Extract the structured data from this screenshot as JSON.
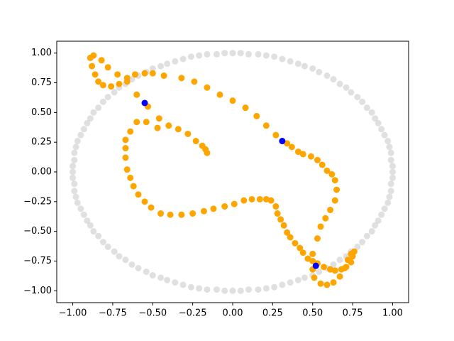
{
  "chart_data": {
    "type": "scatter",
    "xlim": [
      -1.1,
      1.1
    ],
    "ylim": [
      -1.1,
      1.1
    ],
    "xticks": [
      {
        "value": -1,
        "label": "−1.00"
      },
      {
        "value": -0.75,
        "label": "−0.75"
      },
      {
        "value": -0.5,
        "label": "−0.50"
      },
      {
        "value": -0.25,
        "label": "−0.25"
      },
      {
        "value": 0,
        "label": "0.00"
      },
      {
        "value": 0.25,
        "label": "0.25"
      },
      {
        "value": 0.5,
        "label": "0.50"
      },
      {
        "value": 0.75,
        "label": "0.75"
      },
      {
        "value": 1,
        "label": "1.00"
      }
    ],
    "yticks": [
      {
        "value": -1,
        "label": "−1.00"
      },
      {
        "value": -0.75,
        "label": "−0.75"
      },
      {
        "value": -0.5,
        "label": "−0.50"
      },
      {
        "value": -0.25,
        "label": "−0.25"
      },
      {
        "value": 0,
        "label": "0.00"
      },
      {
        "value": 0.25,
        "label": "0.25"
      },
      {
        "value": 0.5,
        "label": "0.50"
      },
      {
        "value": 0.75,
        "label": "0.75"
      },
      {
        "value": 1,
        "label": "1.00"
      }
    ],
    "series": [
      {
        "color": "#d3d3d3",
        "opacity": 0.7,
        "x": [
          1,
          1,
          0.99,
          0.99,
          0.98,
          0.97,
          0.95,
          0.93,
          0.91,
          0.89,
          0.87,
          0.84,
          0.81,
          0.78,
          0.74,
          0.71,
          0.67,
          0.63,
          0.59,
          0.54,
          0.5,
          0.45,
          0.41,
          0.36,
          0.31,
          0.26,
          0.21,
          0.16,
          0.1,
          0.05,
          0,
          -0.05,
          -0.1,
          -0.16,
          -0.21,
          -0.26,
          -0.31,
          -0.36,
          -0.41,
          -0.45,
          -0.5,
          -0.54,
          -0.59,
          -0.63,
          -0.67,
          -0.71,
          -0.74,
          -0.78,
          -0.81,
          -0.84,
          -0.87,
          -0.89,
          -0.91,
          -0.93,
          -0.95,
          -0.97,
          -0.98,
          -0.99,
          -0.99,
          -1,
          -1,
          -1,
          -0.99,
          -0.99,
          -0.98,
          -0.97,
          -0.95,
          -0.93,
          -0.91,
          -0.89,
          -0.87,
          -0.84,
          -0.81,
          -0.78,
          -0.74,
          -0.71,
          -0.67,
          -0.63,
          -0.59,
          -0.54,
          -0.5,
          -0.45,
          -0.41,
          -0.36,
          -0.31,
          -0.26,
          -0.21,
          -0.16,
          -0.1,
          -0.05,
          0,
          0.05,
          0.1,
          0.16,
          0.21,
          0.26,
          0.31,
          0.36,
          0.41,
          0.45,
          0.5,
          0.54,
          0.59,
          0.63,
          0.67,
          0.71,
          0.74,
          0.78,
          0.81,
          0.84,
          0.87,
          0.89,
          0.91,
          0.93,
          0.95,
          0.97,
          0.98,
          0.99,
          0.99,
          1
        ],
        "y": [
          0,
          0.05,
          0.1,
          0.16,
          0.21,
          0.26,
          0.31,
          0.36,
          0.41,
          0.45,
          0.5,
          0.54,
          0.59,
          0.63,
          0.67,
          0.71,
          0.74,
          0.78,
          0.81,
          0.84,
          0.87,
          0.89,
          0.91,
          0.93,
          0.95,
          0.97,
          0.98,
          0.99,
          0.99,
          1,
          1,
          1,
          0.99,
          0.99,
          0.98,
          0.97,
          0.95,
          0.93,
          0.91,
          0.89,
          0.87,
          0.84,
          0.81,
          0.78,
          0.74,
          0.71,
          0.67,
          0.63,
          0.59,
          0.54,
          0.5,
          0.45,
          0.41,
          0.36,
          0.31,
          0.26,
          0.21,
          0.16,
          0.1,
          0.05,
          0,
          -0.05,
          -0.1,
          -0.16,
          -0.21,
          -0.26,
          -0.31,
          -0.36,
          -0.41,
          -0.45,
          -0.5,
          -0.54,
          -0.59,
          -0.63,
          -0.67,
          -0.71,
          -0.74,
          -0.78,
          -0.81,
          -0.84,
          -0.87,
          -0.89,
          -0.91,
          -0.93,
          -0.95,
          -0.97,
          -0.98,
          -0.99,
          -0.99,
          -1,
          -1,
          -1,
          -0.99,
          -0.99,
          -0.98,
          -0.97,
          -0.95,
          -0.93,
          -0.91,
          -0.89,
          -0.87,
          -0.84,
          -0.81,
          -0.78,
          -0.74,
          -0.71,
          -0.67,
          -0.63,
          -0.59,
          -0.54,
          -0.5,
          -0.45,
          -0.41,
          -0.36,
          -0.31,
          -0.26,
          -0.21,
          -0.16,
          -0.1,
          -0.05
        ]
      },
      {
        "color": "#ffa500",
        "opacity": 1,
        "x": [
          -0.16,
          -0.17,
          -0.19,
          -0.23,
          -0.28,
          -0.34,
          -0.4,
          -0.46,
          -0.47,
          -0.54,
          -0.6,
          -0.64,
          -0.67,
          -0.67,
          -0.67,
          -0.66,
          -0.64,
          -0.62,
          -0.59,
          -0.55,
          -0.51,
          -0.45,
          -0.39,
          -0.32,
          -0.25,
          -0.18,
          -0.12,
          -0.05,
          0.01,
          0.07,
          0.12,
          0.17,
          0.21,
          0.24,
          0.27,
          0.28,
          0.3,
          0.32,
          0.34,
          0.36,
          0.39,
          0.42,
          0.44,
          0.47,
          0.5,
          0.53,
          0.57,
          0.61,
          0.64,
          0.68,
          0.71,
          0.74,
          0.75,
          0.76,
          0.74,
          0.72,
          0.7,
          0.67,
          0.63,
          0.59,
          0.55,
          0.51,
          0.5,
          0.5,
          0.53,
          0.55,
          0.58,
          0.61,
          0.64,
          0.65,
          0.64,
          0.62,
          0.59,
          0.56,
          0.53,
          0.49,
          0.44,
          0.41,
          0.37,
          0.34,
          0.31,
          0.27,
          0.21,
          0.15,
          0.08,
          0,
          -0.08,
          -0.16,
          -0.24,
          -0.32,
          -0.43,
          -0.5,
          -0.55,
          -0.61,
          -0.66,
          -0.71,
          -0.76,
          -0.81,
          -0.84,
          -0.86,
          -0.88,
          -0.89,
          -0.87,
          -0.82,
          -0.78,
          -0.72,
          -0.66,
          -0.6,
          -0.53
        ],
        "y": [
          0.16,
          0.19,
          0.22,
          0.26,
          0.32,
          0.36,
          0.39,
          0.45,
          0.37,
          0.42,
          0.42,
          0.34,
          0.27,
          0.2,
          0.12,
          0.02,
          -0.05,
          -0.12,
          -0.19,
          -0.25,
          -0.3,
          -0.35,
          -0.36,
          -0.36,
          -0.35,
          -0.33,
          -0.31,
          -0.29,
          -0.27,
          -0.24,
          -0.23,
          -0.23,
          -0.23,
          -0.24,
          -0.29,
          -0.35,
          -0.4,
          -0.45,
          -0.51,
          -0.55,
          -0.6,
          -0.64,
          -0.68,
          -0.73,
          -0.75,
          -0.77,
          -0.8,
          -0.82,
          -0.83,
          -0.82,
          -0.8,
          -0.76,
          -0.71,
          -0.67,
          -0.69,
          -0.74,
          -0.81,
          -0.88,
          -0.93,
          -0.95,
          -0.94,
          -0.89,
          -0.82,
          -0.69,
          -0.56,
          -0.46,
          -0.39,
          -0.32,
          -0.24,
          -0.15,
          -0.07,
          -0.02,
          0.01,
          0.06,
          0.1,
          0.13,
          0.15,
          0.17,
          0.21,
          0.24,
          0.26,
          0.31,
          0.39,
          0.47,
          0.54,
          0.6,
          0.65,
          0.71,
          0.76,
          0.79,
          0.81,
          0.83,
          0.83,
          0.82,
          0.79,
          0.74,
          0.72,
          0.73,
          0.76,
          0.82,
          0.89,
          0.96,
          0.98,
          0.94,
          0.88,
          0.82,
          0.76,
          0.65,
          0.55
        ]
      },
      {
        "color": "#0000ff",
        "opacity": 1,
        "x": [
          -0.55,
          0.31,
          0.52
        ],
        "y": [
          0.58,
          0.26,
          -0.79
        ]
      }
    ]
  }
}
